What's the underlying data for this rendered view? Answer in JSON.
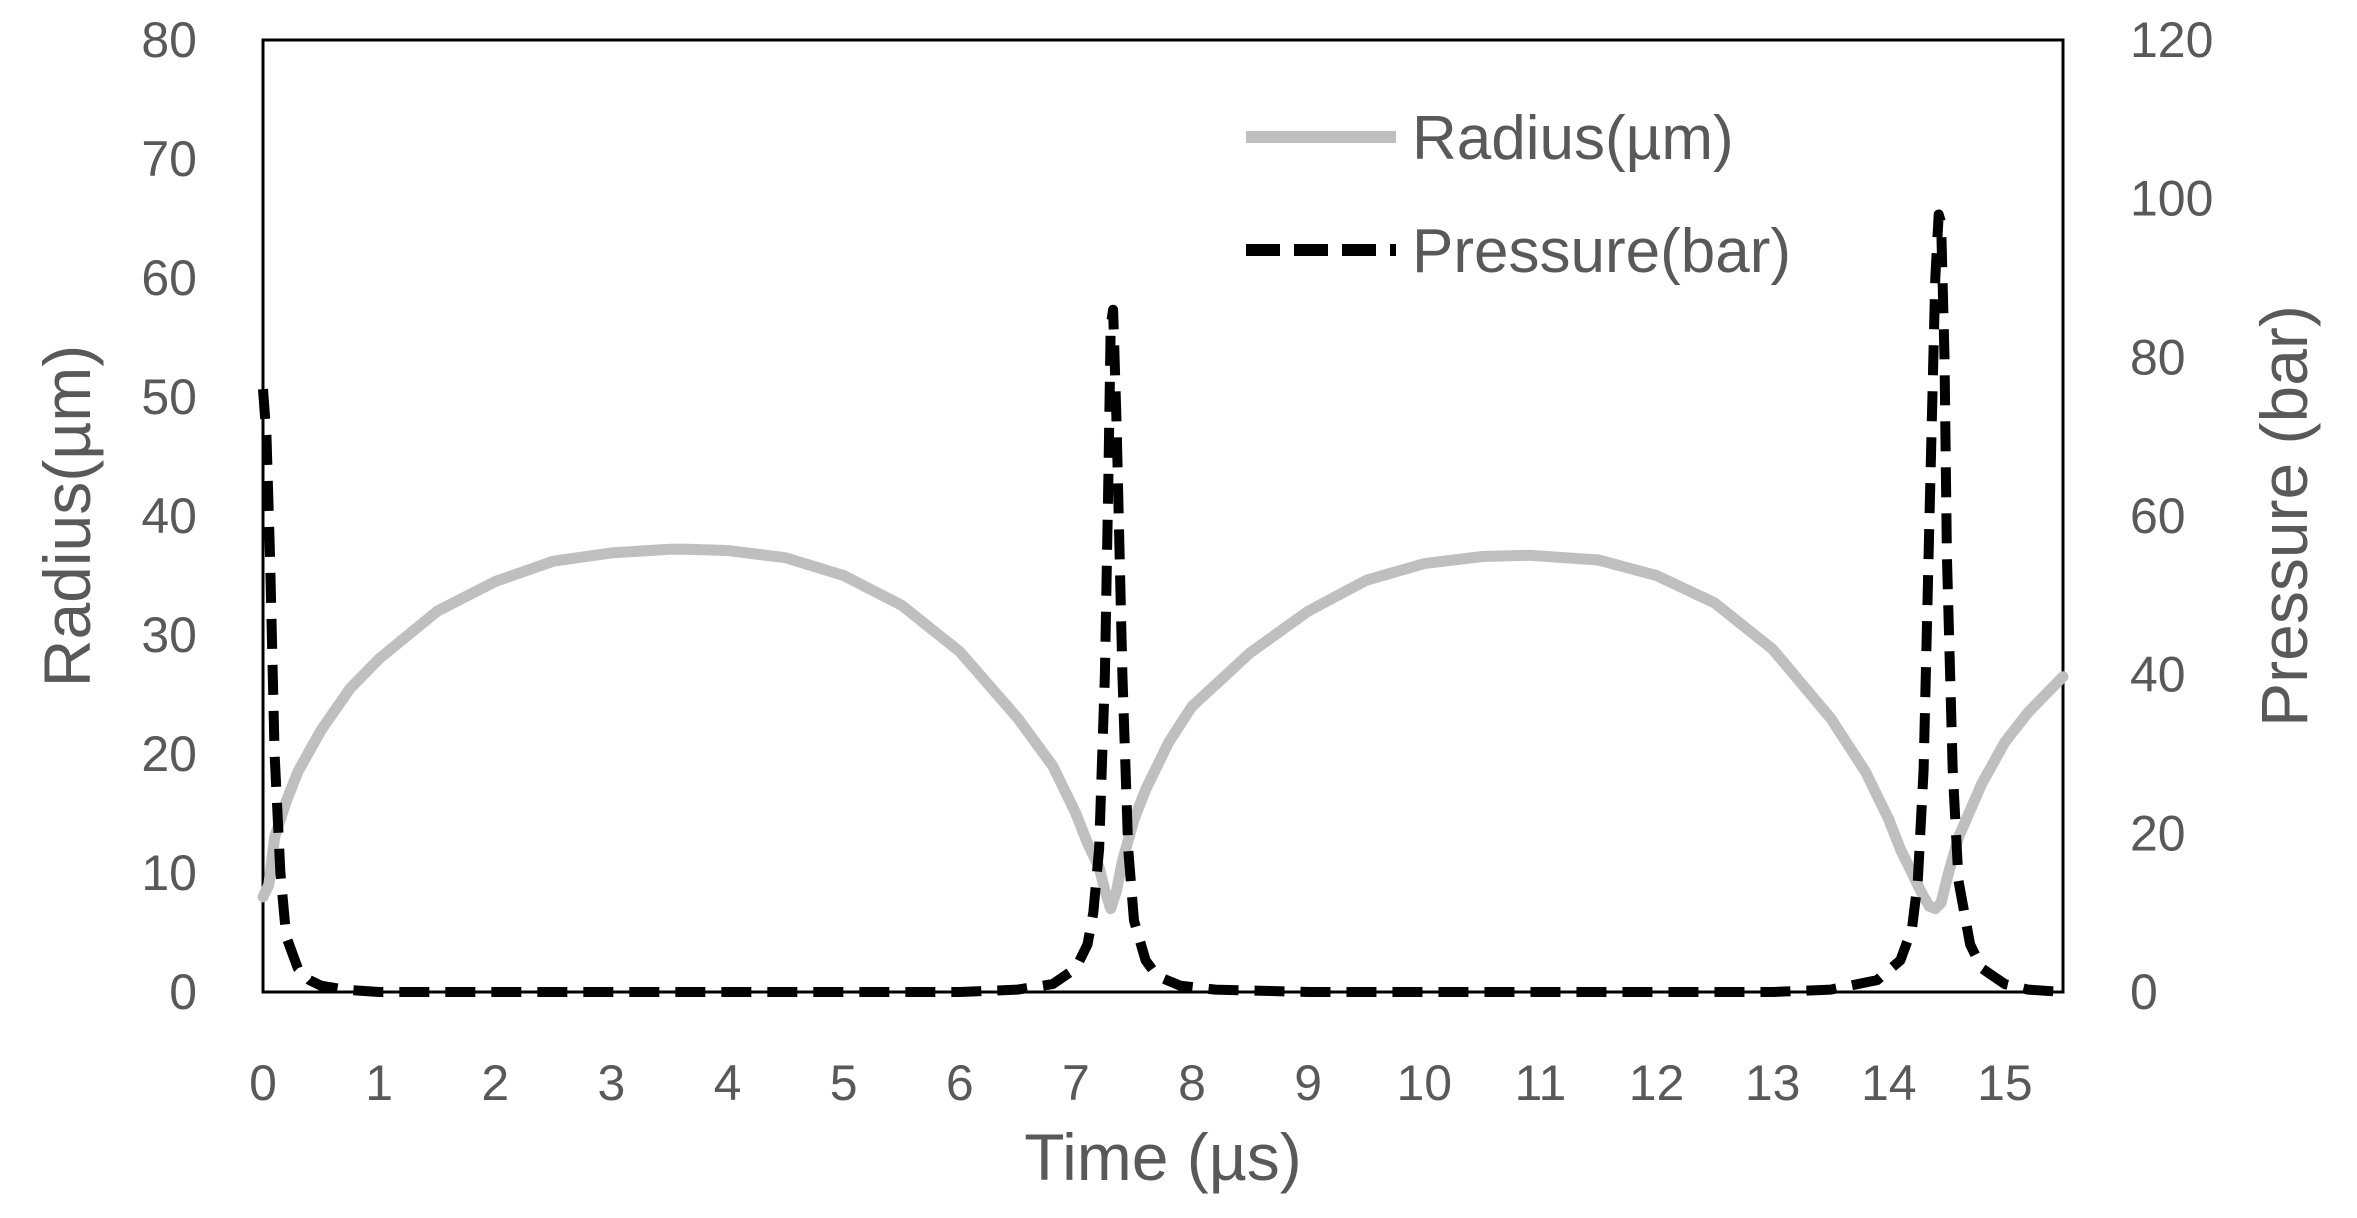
{
  "chart_data": {
    "type": "line",
    "title": "",
    "xlabel": "Time (µs)",
    "ylabel_left": "Radius(µm)",
    "ylabel_right": "Pressure (bar)",
    "xlim": [
      0,
      15.5
    ],
    "ylim_left": [
      0,
      80
    ],
    "ylim_right": [
      0,
      120
    ],
    "x_ticks": [
      "0",
      "1",
      "2",
      "3",
      "4",
      "5",
      "6",
      "7",
      "8",
      "9",
      "10",
      "11",
      "12",
      "13",
      "14",
      "15"
    ],
    "y_left_ticks": [
      "0",
      "10",
      "20",
      "30",
      "40",
      "50",
      "60",
      "70",
      "80"
    ],
    "y_right_ticks": [
      "0",
      "20",
      "40",
      "60",
      "80",
      "100",
      "120"
    ],
    "grid": false,
    "legend_position": "top-right",
    "series": [
      {
        "name": "Radius(µm)",
        "axis": "left",
        "color": "#bfbfbf",
        "style": "solid",
        "x": [
          0.0,
          0.05,
          0.1,
          0.2,
          0.3,
          0.5,
          0.75,
          1.0,
          1.5,
          2.0,
          2.5,
          3.0,
          3.5,
          3.65,
          4.0,
          4.5,
          5.0,
          5.5,
          6.0,
          6.5,
          6.8,
          7.0,
          7.1,
          7.2,
          7.25,
          7.3,
          7.35,
          7.4,
          7.5,
          7.6,
          7.8,
          8.0,
          8.5,
          9.0,
          9.5,
          10.0,
          10.5,
          10.9,
          11.5,
          12.0,
          12.5,
          13.0,
          13.5,
          13.8,
          14.0,
          14.1,
          14.2,
          14.3,
          14.35,
          14.4,
          14.45,
          14.5,
          14.6,
          14.8,
          15.0,
          15.2,
          15.5
        ],
        "values": [
          8,
          9,
          13,
          16,
          18.5,
          22,
          25.5,
          28,
          32,
          34.5,
          36.2,
          36.9,
          37.2,
          37.2,
          37.1,
          36.5,
          35,
          32.5,
          28.6,
          23,
          19,
          15,
          12.5,
          10.5,
          8.5,
          7,
          8.5,
          11,
          14.5,
          17,
          21,
          24,
          28.5,
          32,
          34.6,
          36,
          36.6,
          36.7,
          36.3,
          35,
          32.7,
          28.8,
          23,
          18.5,
          14.5,
          12,
          10,
          8,
          7.2,
          7,
          7.5,
          9.5,
          13,
          17.5,
          21,
          23.5,
          26.5
        ]
      },
      {
        "name": "Pressure(bar)",
        "axis": "right",
        "color": "#000000",
        "style": "dashed",
        "x": [
          0.0,
          0.03,
          0.06,
          0.1,
          0.15,
          0.2,
          0.3,
          0.4,
          0.5,
          0.7,
          1.0,
          2.0,
          3.0,
          4.0,
          5.0,
          6.0,
          6.5,
          6.8,
          7.0,
          7.1,
          7.15,
          7.2,
          7.25,
          7.28,
          7.3,
          7.32,
          7.35,
          7.4,
          7.45,
          7.5,
          7.6,
          7.7,
          7.9,
          8.2,
          9.0,
          10.0,
          11.0,
          12.0,
          13.0,
          13.5,
          13.9,
          14.1,
          14.2,
          14.25,
          14.3,
          14.35,
          14.4,
          14.43,
          14.45,
          14.48,
          14.5,
          14.55,
          14.6,
          14.7,
          14.8,
          15.0,
          15.2,
          15.5
        ],
        "values": [
          76,
          70,
          55,
          30,
          15,
          7,
          3,
          1.5,
          0.8,
          0.3,
          0,
          0,
          0,
          0,
          0,
          0,
          0.3,
          1,
          3,
          6,
          10,
          18,
          40,
          65,
          84,
          86,
          72,
          40,
          18,
          9,
          4,
          2,
          0.8,
          0.3,
          0,
          0,
          0,
          0,
          0,
          0.3,
          1.5,
          4,
          8,
          14,
          28,
          60,
          90,
          98,
          97,
          80,
          55,
          28,
          14,
          6,
          3,
          1,
          0.3,
          0
        ]
      }
    ]
  }
}
